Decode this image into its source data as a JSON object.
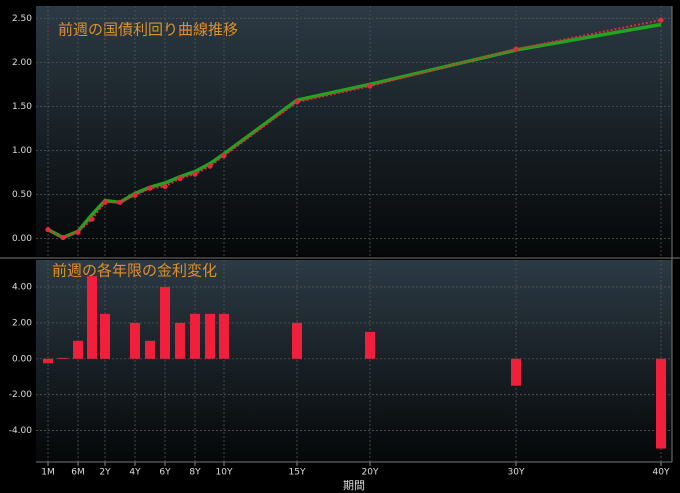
{
  "chart_data": [
    {
      "type": "line",
      "title": "前週の国債利回り曲線推移",
      "series": [
        {
          "color": "#1fa51f",
          "style": "solid",
          "values": [
            0.1,
            0.01,
            0.08,
            0.27,
            0.43,
            0.41,
            0.51,
            0.58,
            0.63,
            0.7,
            0.76,
            0.85,
            0.96,
            1.57,
            1.75,
            2.14,
            2.43
          ]
        },
        {
          "color": "#e8283c",
          "style": "dotted",
          "values": [
            0.1,
            0.01,
            0.07,
            0.22,
            0.41,
            0.41,
            0.49,
            0.57,
            0.59,
            0.68,
            0.73,
            0.82,
            0.94,
            1.55,
            1.73,
            2.15,
            2.48
          ]
        }
      ],
      "ylim": [
        -0.2,
        2.64
      ],
      "yticks": [
        {
          "value": 0,
          "label": "0.00"
        },
        {
          "value": 0.5,
          "label": "0.50"
        },
        {
          "value": 1,
          "label": "1.00"
        },
        {
          "value": 1.5,
          "label": "1.50"
        },
        {
          "value": 2,
          "label": "2.00"
        },
        {
          "value": 2.5,
          "label": "2.50"
        }
      ],
      "grid": true
    },
    {
      "type": "bar",
      "title": "前週の各年限の金利変化",
      "xlabel": "期間",
      "categories": [
        "1M",
        null,
        "6M",
        null,
        "2Y",
        null,
        "4Y",
        null,
        "6Y",
        null,
        "8Y",
        null,
        "10Y",
        "15Y",
        "20Y",
        "30Y",
        "40Y"
      ],
      "values": [
        -0.25,
        0.05,
        1.0,
        4.6,
        2.5,
        0,
        2.0,
        1.0,
        4.0,
        2.0,
        2.5,
        2.5,
        2.5,
        2.0,
        1.5,
        -1.5,
        -5.0
      ],
      "color": "#f0203c",
      "ylim": [
        -5.75,
        5.5
      ],
      "yticks": [
        {
          "value": -4,
          "label": "-4.00"
        },
        {
          "value": -2,
          "label": "-2.00"
        },
        {
          "value": 0,
          "label": "0.00"
        },
        {
          "value": 2,
          "label": "2.00"
        },
        {
          "value": 4,
          "label": "4.00"
        }
      ],
      "grid": true
    }
  ]
}
